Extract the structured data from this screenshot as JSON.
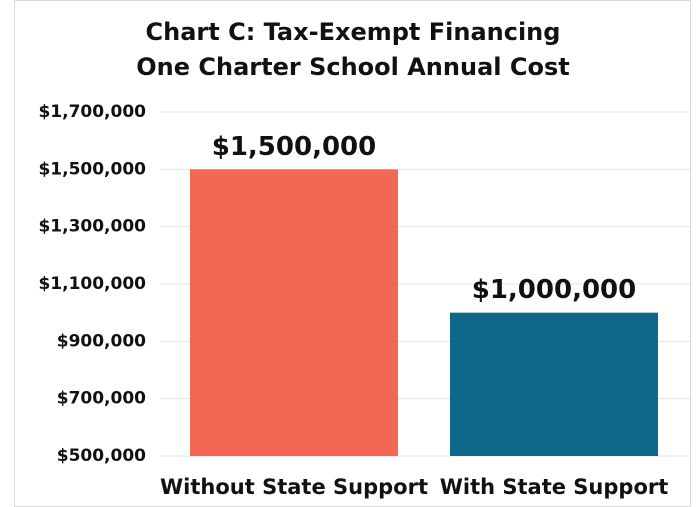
{
  "chart_data": {
    "type": "bar",
    "title": "Chart C: Tax-Exempt Financing",
    "subtitle": "One Charter School Annual Cost",
    "categories": [
      "Without State Support",
      "With State Support"
    ],
    "values": [
      1500000,
      1000000
    ],
    "value_labels": [
      "$1,500,000",
      "$1,000,000"
    ],
    "colors": [
      "#f26852",
      "#0f688a"
    ],
    "ylim": [
      500000,
      1700000
    ],
    "yticks": [
      {
        "value": 500000,
        "label": "$500,000"
      },
      {
        "value": 700000,
        "label": "$700,000"
      },
      {
        "value": 900000,
        "label": "$900,000"
      },
      {
        "value": 1100000,
        "label": "$1,100,000"
      },
      {
        "value": 1300000,
        "label": "$1,300,000"
      },
      {
        "value": 1500000,
        "label": "$1,500,000"
      },
      {
        "value": 1700000,
        "label": "$1,700,000"
      }
    ],
    "grid": true
  }
}
